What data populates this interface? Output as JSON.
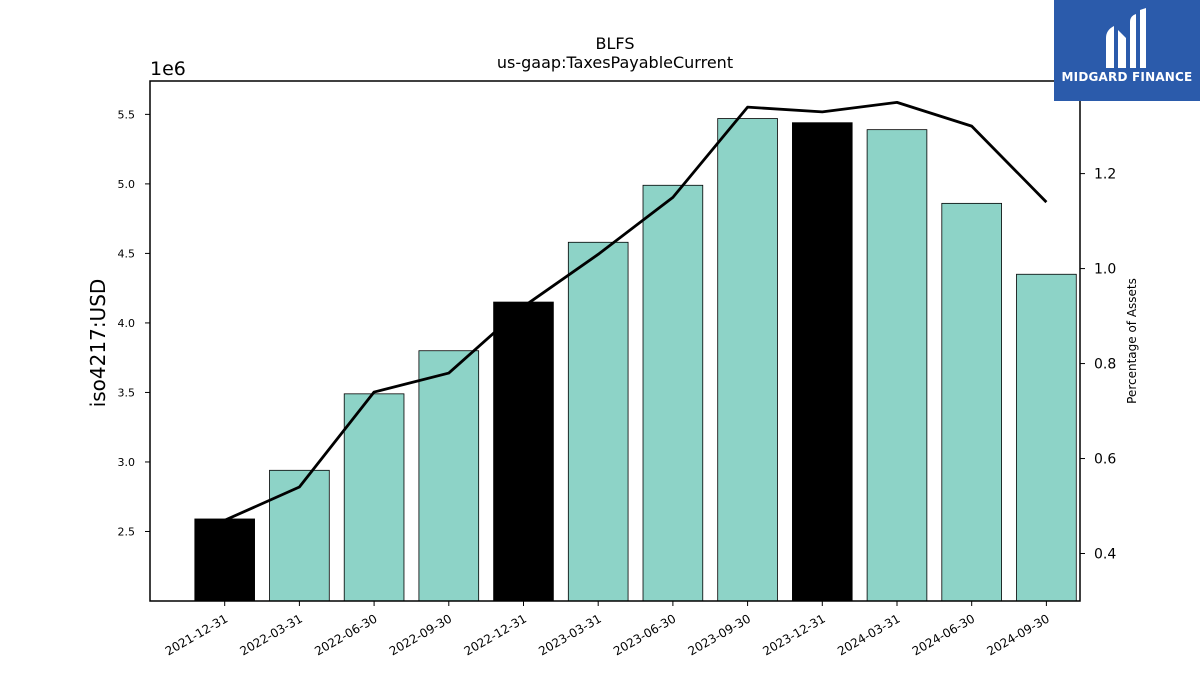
{
  "chart_data": {
    "type": "bar",
    "title": "BLFS",
    "subtitle": "us-gaap:TaxesPayableCurrent",
    "ylabel": "iso4217:USD",
    "y_multiplier": "1e6",
    "y2label": "Percentage of Assets",
    "categories": [
      "2021-12-31",
      "2022-03-31",
      "2022-06-30",
      "2022-09-30",
      "2022-12-31",
      "2023-03-31",
      "2023-06-30",
      "2023-09-30",
      "2023-12-31",
      "2024-03-31",
      "2024-06-30",
      "2024-09-30"
    ],
    "series": [
      {
        "type": "bar",
        "values": [
          2.59,
          2.94,
          3.49,
          3.8,
          4.15,
          4.58,
          4.99,
          5.47,
          5.44,
          5.39,
          4.86,
          4.35
        ],
        "colors": [
          "#000000",
          "#8dd3c7",
          "#8dd3c7",
          "#8dd3c7",
          "#000000",
          "#8dd3c7",
          "#8dd3c7",
          "#8dd3c7",
          "#000000",
          "#8dd3c7",
          "#8dd3c7",
          "#8dd3c7"
        ]
      },
      {
        "type": "line",
        "axis": "right",
        "color": "#000000",
        "values": [
          0.47,
          0.54,
          0.74,
          0.78,
          0.92,
          1.03,
          1.15,
          1.34,
          1.33,
          1.35,
          1.3,
          1.14
        ]
      }
    ],
    "ylim": [
      2.0,
      5.74
    ],
    "yticks": [
      "2.5",
      "3.0",
      "3.5",
      "4.0",
      "4.5",
      "5.0",
      "5.5"
    ],
    "y2lim": [
      0.3,
      1.395
    ],
    "y2ticks": [
      "0.4",
      "0.6",
      "0.8",
      "1.0",
      "1.2"
    ],
    "grid": false,
    "legend": "none"
  },
  "logo": {
    "text": "MIDGARD FINANCE",
    "background": "#2b5bab"
  }
}
